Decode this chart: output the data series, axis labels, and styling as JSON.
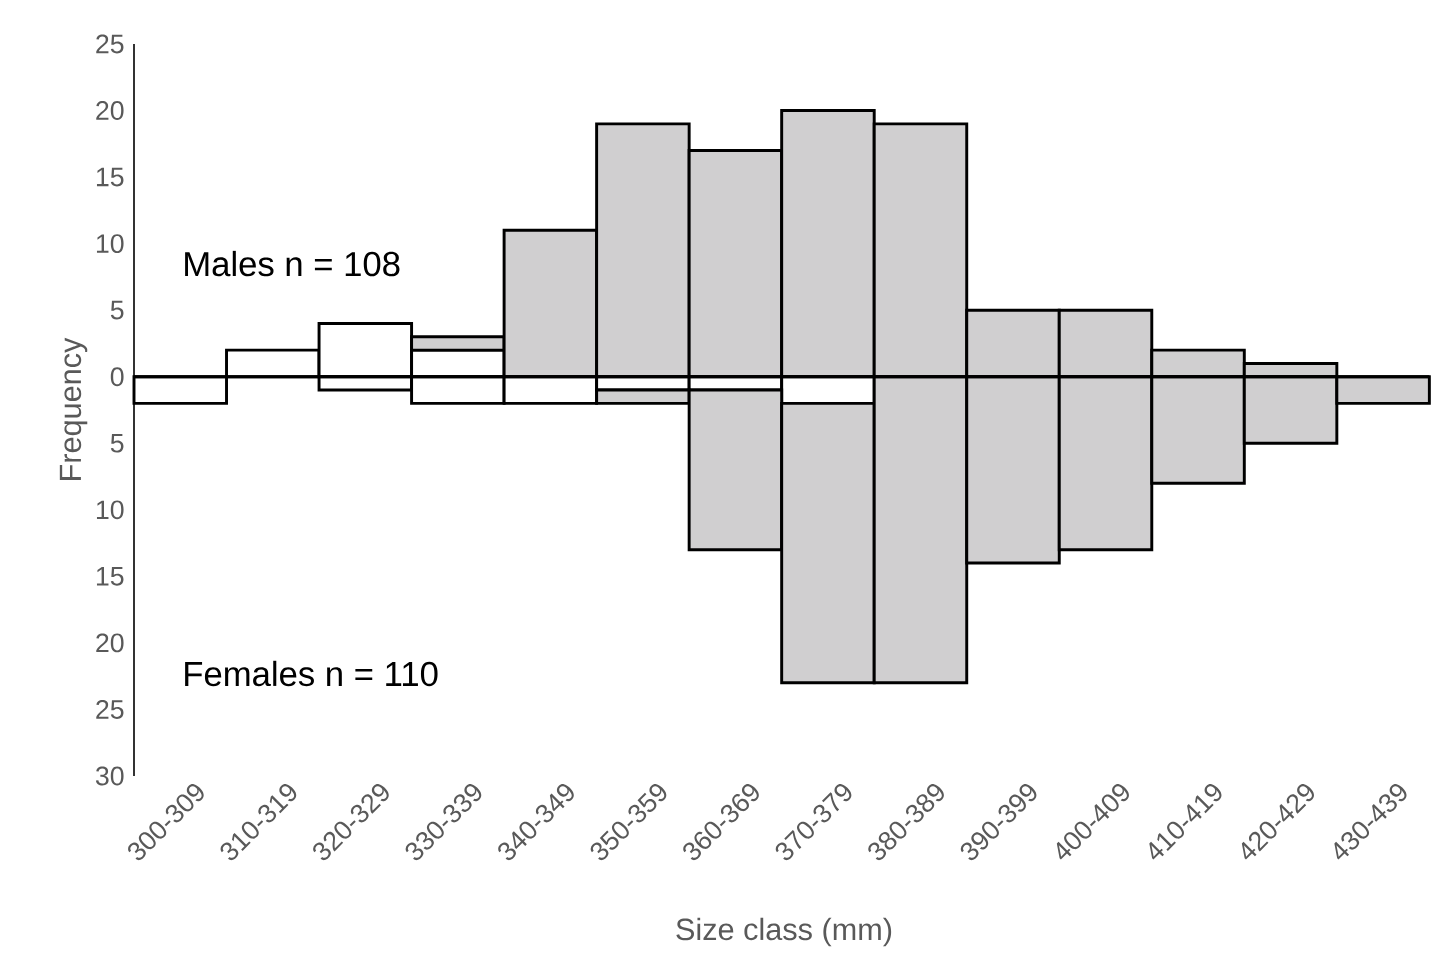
{
  "chart_data": {
    "type": "bar",
    "stacked": true,
    "xlabel": "Size class (mm)",
    "ylabel": "Frequency",
    "categories": [
      "300-309",
      "310-319",
      "320-329",
      "330-339",
      "340-349",
      "350-359",
      "360-369",
      "370-379",
      "380-389",
      "390-399",
      "400-409",
      "410-419",
      "420-429",
      "430-439"
    ],
    "series": [
      {
        "color": "#ffffff",
        "values": [
          0,
          2,
          4,
          2,
          0,
          0,
          0,
          0,
          0,
          0,
          0,
          0,
          0,
          0
        ]
      },
      {
        "color": "#d0cfd0",
        "values": [
          0,
          0,
          0,
          1,
          11,
          19,
          17,
          20,
          19,
          5,
          5,
          2,
          1,
          0
        ]
      },
      {
        "color": "#ffffff",
        "values": [
          -2,
          0,
          -1,
          -2,
          -2,
          -1,
          -1,
          -2,
          0,
          0,
          0,
          0,
          0,
          0
        ]
      },
      {
        "color": "#d0cfd0",
        "values": [
          0,
          0,
          0,
          0,
          0,
          -1,
          -12,
          -21,
          -23,
          -14,
          -13,
          -8,
          -5,
          -2
        ]
      }
    ],
    "ylim": [
      -30,
      25
    ],
    "yticks": [
      {
        "value": -30,
        "label": "30"
      },
      {
        "value": -25,
        "label": "25"
      },
      {
        "value": -20,
        "label": "20"
      },
      {
        "value": -15,
        "label": "15"
      },
      {
        "value": -10,
        "label": "10"
      },
      {
        "value": -5,
        "label": "5"
      },
      0,
      5,
      10,
      15,
      20,
      25
    ],
    "annotations": [
      "Males n = 108",
      "Females n = 110"
    ]
  }
}
